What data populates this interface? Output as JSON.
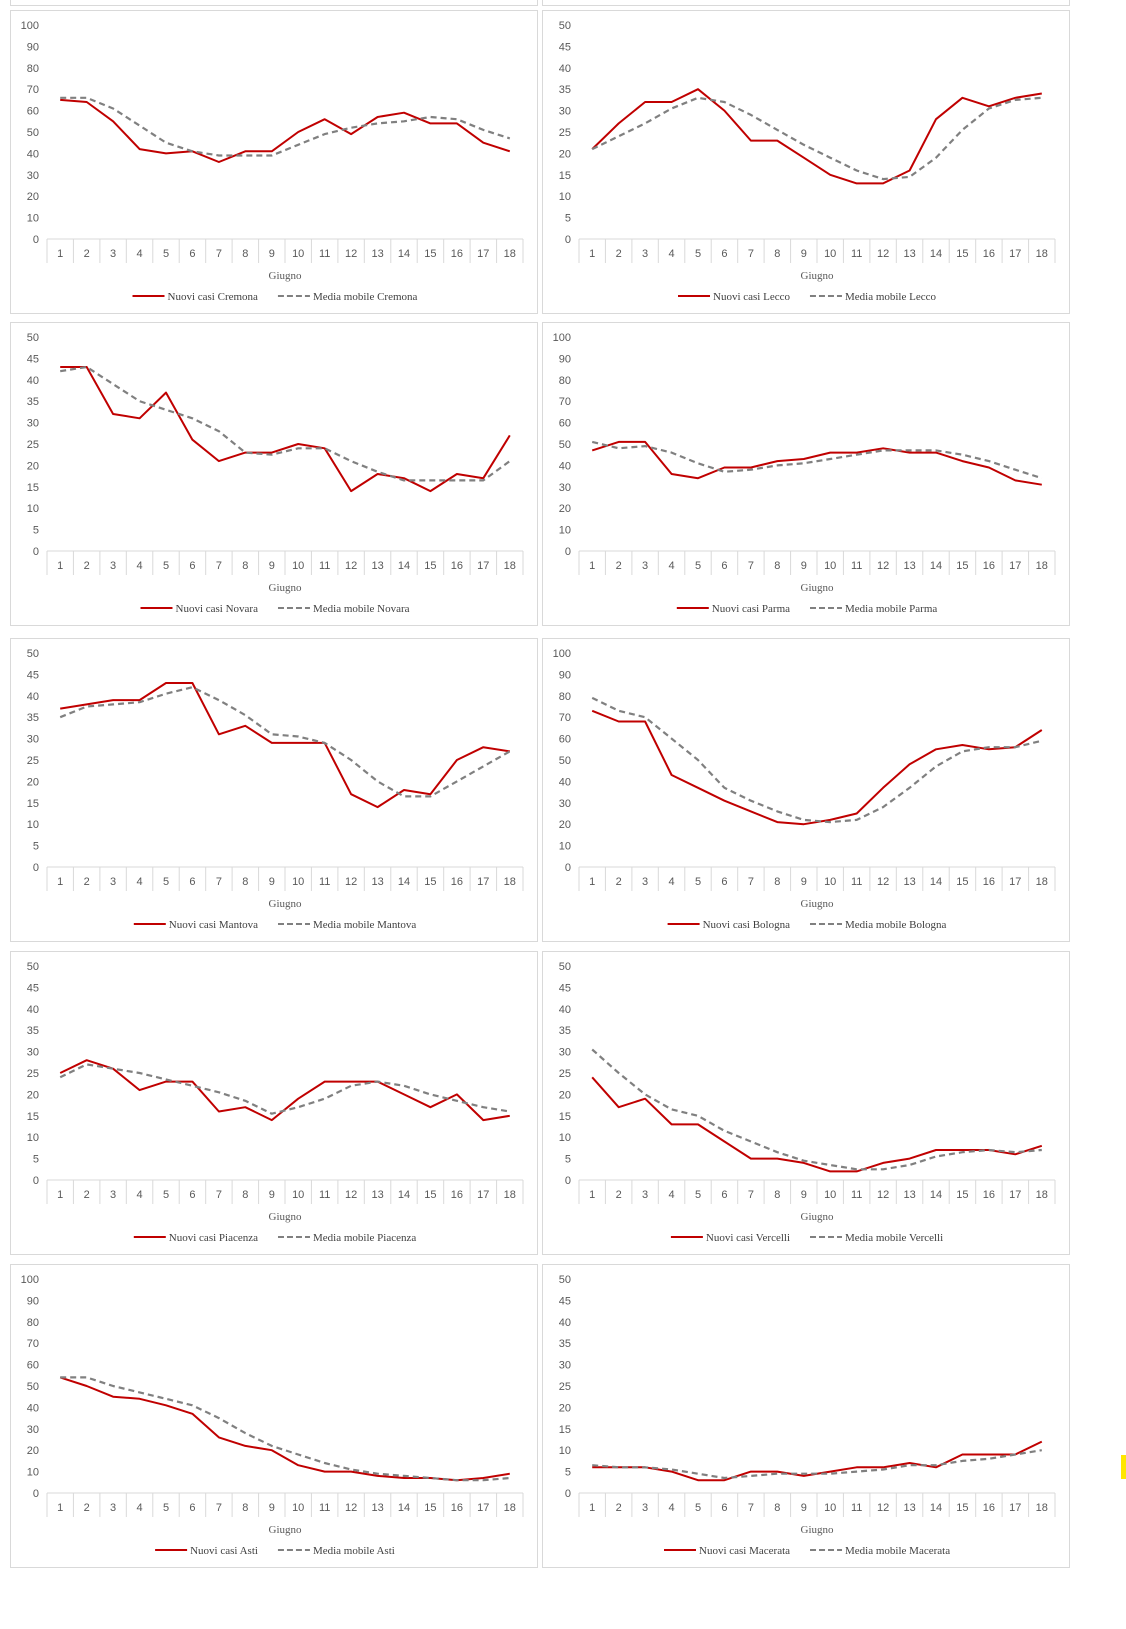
{
  "colors": {
    "nuovi": "#c00000",
    "media": "#808080",
    "axis": "#d9d9d9",
    "text": "#595959"
  },
  "chart_data": [
    {
      "type": "line",
      "categories": [
        "1",
        "2",
        "3",
        "4",
        "5",
        "6",
        "7",
        "8",
        "9",
        "10",
        "11",
        "12",
        "13",
        "14",
        "15",
        "16",
        "17",
        "18"
      ],
      "xlabel": "Giugno",
      "yticks": [
        "0",
        "10",
        "20",
        "30",
        "40",
        "50",
        "60",
        "70",
        "80",
        "90",
        "100"
      ],
      "ylim": [
        0,
        100
      ],
      "series": [
        {
          "name": "Nuovi casi Cremona",
          "style": "solid",
          "values": [
            65,
            64,
            55,
            42,
            40,
            41,
            36,
            41,
            41,
            50,
            56,
            49,
            57,
            59,
            54,
            54,
            45,
            41
          ]
        },
        {
          "name": "Media mobile Cremona",
          "style": "dashed",
          "values": [
            66,
            66,
            61,
            53,
            45,
            41,
            39,
            39,
            39,
            44,
            49,
            52,
            54,
            55,
            57,
            56,
            51,
            47
          ]
        }
      ]
    },
    {
      "type": "line",
      "categories": [
        "1",
        "2",
        "3",
        "4",
        "5",
        "6",
        "7",
        "8",
        "9",
        "10",
        "11",
        "12",
        "13",
        "14",
        "15",
        "16",
        "17",
        "18"
      ],
      "xlabel": "Giugno",
      "yticks": [
        "0",
        "5",
        "10",
        "15",
        "20",
        "25",
        "30",
        "35",
        "40",
        "45",
        "50"
      ],
      "ylim": [
        0,
        50
      ],
      "series": [
        {
          "name": "Nuovi casi Lecco",
          "style": "solid",
          "values": [
            21,
            27,
            32,
            32,
            35,
            30,
            23,
            23,
            19,
            15,
            13,
            13,
            16,
            28,
            33,
            31,
            33,
            34
          ]
        },
        {
          "name": "Media mobile Lecco",
          "style": "dashed",
          "values": [
            21,
            24,
            27,
            30.5,
            33,
            32,
            29,
            25.5,
            22,
            19,
            16,
            14,
            14.5,
            19,
            25.5,
            30.5,
            32.5,
            33
          ]
        }
      ]
    },
    {
      "type": "line",
      "categories": [
        "1",
        "2",
        "3",
        "4",
        "5",
        "6",
        "7",
        "8",
        "9",
        "10",
        "11",
        "12",
        "13",
        "14",
        "15",
        "16",
        "17",
        "18"
      ],
      "xlabel": "Giugno",
      "yticks": [
        "0",
        "5",
        "10",
        "15",
        "20",
        "25",
        "30",
        "35",
        "40",
        "45",
        "50"
      ],
      "ylim": [
        0,
        50
      ],
      "series": [
        {
          "name": "Nuovi casi Novara",
          "style": "solid",
          "values": [
            43,
            43,
            32,
            31,
            37,
            26,
            21,
            23,
            23,
            25,
            24,
            14,
            18,
            17,
            14,
            18,
            17,
            27
          ]
        },
        {
          "name": "Media mobile Novara",
          "style": "dashed",
          "values": [
            42,
            43,
            39,
            35,
            33,
            31,
            28,
            23,
            22.5,
            24,
            24,
            21,
            18.5,
            16.5,
            16.5,
            16.5,
            16.5,
            21
          ]
        }
      ]
    },
    {
      "type": "line",
      "categories": [
        "1",
        "2",
        "3",
        "4",
        "5",
        "6",
        "7",
        "8",
        "9",
        "10",
        "11",
        "12",
        "13",
        "14",
        "15",
        "16",
        "17",
        "18"
      ],
      "xlabel": "Giugno",
      "yticks": [
        "0",
        "10",
        "20",
        "30",
        "40",
        "50",
        "60",
        "70",
        "80",
        "90",
        "100"
      ],
      "ylim": [
        0,
        100
      ],
      "series": [
        {
          "name": "Nuovi casi Parma",
          "style": "solid",
          "values": [
            47,
            51,
            51,
            36,
            34,
            39,
            39,
            42,
            43,
            46,
            46,
            48,
            46,
            46,
            42,
            39,
            33,
            31
          ]
        },
        {
          "name": "Media mobile Parma",
          "style": "dashed",
          "values": [
            51,
            48,
            49,
            46,
            41,
            37,
            38,
            40,
            41,
            43,
            45,
            47,
            47,
            47,
            45,
            42,
            38,
            34
          ]
        }
      ]
    },
    {
      "type": "line",
      "categories": [
        "1",
        "2",
        "3",
        "4",
        "5",
        "6",
        "7",
        "8",
        "9",
        "10",
        "11",
        "12",
        "13",
        "14",
        "15",
        "16",
        "17",
        "18"
      ],
      "xlabel": "Giugno",
      "yticks": [
        "0",
        "5",
        "10",
        "15",
        "20",
        "25",
        "30",
        "35",
        "40",
        "45",
        "50"
      ],
      "ylim": [
        0,
        50
      ],
      "series": [
        {
          "name": "Nuovi casi Mantova",
          "style": "solid",
          "values": [
            37,
            38,
            39,
            39,
            43,
            43,
            31,
            33,
            29,
            29,
            29,
            17,
            14,
            18,
            17,
            25,
            28,
            27
          ]
        },
        {
          "name": "Media mobile Mantova",
          "style": "dashed",
          "values": [
            35,
            37.5,
            38,
            38.5,
            40.5,
            42,
            39,
            35.5,
            31,
            30.5,
            29,
            25,
            20,
            16.5,
            16.5,
            20,
            23.5,
            27
          ]
        }
      ]
    },
    {
      "type": "line",
      "categories": [
        "1",
        "2",
        "3",
        "4",
        "5",
        "6",
        "7",
        "8",
        "9",
        "10",
        "11",
        "12",
        "13",
        "14",
        "15",
        "16",
        "17",
        "18"
      ],
      "xlabel": "Giugno",
      "yticks": [
        "0",
        "10",
        "20",
        "30",
        "40",
        "50",
        "60",
        "70",
        "80",
        "90",
        "100"
      ],
      "ylim": [
        0,
        100
      ],
      "series": [
        {
          "name": "Nuovi casi Bologna",
          "style": "solid",
          "values": [
            73,
            68,
            68,
            43,
            37,
            31,
            26,
            21,
            20,
            22,
            25,
            37,
            48,
            55,
            57,
            55,
            56,
            64
          ]
        },
        {
          "name": "Media mobile Bologna",
          "style": "dashed",
          "values": [
            79,
            73,
            70,
            60,
            50,
            37,
            31,
            26,
            22,
            21,
            22,
            28,
            37,
            47,
            54,
            56,
            56,
            59
          ]
        }
      ]
    },
    {
      "type": "line",
      "categories": [
        "1",
        "2",
        "3",
        "4",
        "5",
        "6",
        "7",
        "8",
        "9",
        "10",
        "11",
        "12",
        "13",
        "14",
        "15",
        "16",
        "17",
        "18"
      ],
      "xlabel": "Giugno",
      "yticks": [
        "0",
        "5",
        "10",
        "15",
        "20",
        "25",
        "30",
        "35",
        "40",
        "45",
        "50"
      ],
      "ylim": [
        0,
        50
      ],
      "series": [
        {
          "name": "Nuovi casi Piacenza",
          "style": "solid",
          "values": [
            25,
            28,
            26,
            21,
            23,
            23,
            16,
            17,
            14,
            19,
            23,
            23,
            23,
            20,
            17,
            20,
            14,
            15
          ]
        },
        {
          "name": "Media mobile Piacenza",
          "style": "dashed",
          "values": [
            24,
            27,
            26,
            25,
            23.5,
            22,
            20.5,
            18.5,
            15.5,
            17,
            19,
            22,
            23,
            22,
            20,
            18.5,
            17,
            16
          ]
        }
      ]
    },
    {
      "type": "line",
      "categories": [
        "1",
        "2",
        "3",
        "4",
        "5",
        "6",
        "7",
        "8",
        "9",
        "10",
        "11",
        "12",
        "13",
        "14",
        "15",
        "16",
        "17",
        "18"
      ],
      "xlabel": "Giugno",
      "yticks": [
        "0",
        "5",
        "10",
        "15",
        "20",
        "25",
        "30",
        "35",
        "40",
        "45",
        "50"
      ],
      "ylim": [
        0,
        50
      ],
      "series": [
        {
          "name": "Nuovi casi Vercelli",
          "style": "solid",
          "values": [
            24,
            17,
            19,
            13,
            13,
            9,
            5,
            5,
            4,
            2,
            2,
            4,
            5,
            7,
            7,
            7,
            6,
            8
          ]
        },
        {
          "name": "Media mobile Vercelli",
          "style": "dashed",
          "values": [
            30.5,
            25,
            20,
            16.5,
            15,
            11.5,
            9,
            6.5,
            4.5,
            3.5,
            2.5,
            2.5,
            3.5,
            5.5,
            6.5,
            7,
            6.5,
            7
          ]
        }
      ]
    },
    {
      "type": "line",
      "categories": [
        "1",
        "2",
        "3",
        "4",
        "5",
        "6",
        "7",
        "8",
        "9",
        "10",
        "11",
        "12",
        "13",
        "14",
        "15",
        "16",
        "17",
        "18"
      ],
      "xlabel": "Giugno",
      "yticks": [
        "0",
        "10",
        "20",
        "30",
        "40",
        "50",
        "60",
        "70",
        "80",
        "90",
        "100"
      ],
      "ylim": [
        0,
        100
      ],
      "series": [
        {
          "name": "Nuovi casi Asti",
          "style": "solid",
          "values": [
            54,
            50,
            45,
            44,
            41,
            37,
            26,
            22,
            20,
            13,
            10,
            10,
            8,
            7,
            7,
            6,
            7,
            9
          ]
        },
        {
          "name": "Media mobile Asti",
          "style": "dashed",
          "values": [
            54,
            54,
            50,
            47,
            44,
            41,
            35,
            28,
            22,
            18,
            14,
            11,
            9,
            8,
            7,
            6,
            6,
            7
          ]
        }
      ]
    },
    {
      "type": "line",
      "categories": [
        "1",
        "2",
        "3",
        "4",
        "5",
        "6",
        "7",
        "8",
        "9",
        "10",
        "11",
        "12",
        "13",
        "14",
        "15",
        "16",
        "17",
        "18"
      ],
      "xlabel": "Giugno",
      "yticks": [
        "0",
        "5",
        "10",
        "15",
        "20",
        "25",
        "30",
        "35",
        "40",
        "45",
        "50"
      ],
      "ylim": [
        0,
        50
      ],
      "series": [
        {
          "name": "Nuovi casi Macerata",
          "style": "solid",
          "values": [
            6,
            6,
            6,
            5,
            3,
            3,
            5,
            5,
            4,
            5,
            6,
            6,
            7,
            6,
            9,
            9,
            9,
            12
          ]
        },
        {
          "name": "Media mobile Macerata",
          "style": "dashed",
          "values": [
            6.5,
            6,
            6,
            5.5,
            4.5,
            3.5,
            4,
            4.5,
            4.5,
            4.5,
            5,
            5.5,
            6.5,
            6.5,
            7.5,
            8,
            9,
            10
          ]
        }
      ]
    }
  ]
}
